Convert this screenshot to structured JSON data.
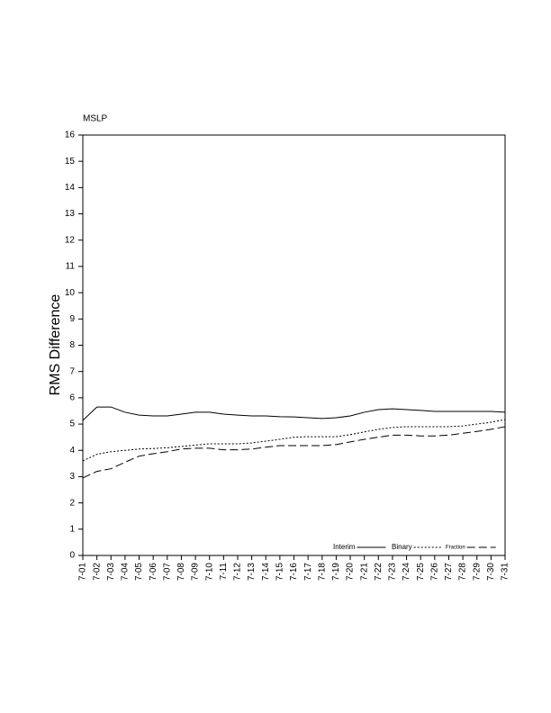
{
  "chart_data": {
    "type": "line",
    "title": "MSLP",
    "y_label": "RMS Difference",
    "categories": [
      "7-01",
      "7-02",
      "7-03",
      "7-04",
      "7-05",
      "7-06",
      "7-07",
      "7-08",
      "7-09",
      "7-10",
      "7-11",
      "7-12",
      "7-13",
      "7-14",
      "7-15",
      "7-16",
      "7-17",
      "7-18",
      "7-19",
      "7-20",
      "7-21",
      "7-22",
      "7-23",
      "7-24",
      "7-25",
      "7-26",
      "7-27",
      "7-28",
      "7-29",
      "7-30",
      "7-31"
    ],
    "series": [
      {
        "name": "Interim",
        "color": "#000000",
        "dash": "solid",
        "values": [
          5.14,
          5.65,
          5.65,
          5.45,
          5.34,
          5.31,
          5.31,
          5.38,
          5.45,
          5.45,
          5.38,
          5.34,
          5.31,
          5.31,
          5.28,
          5.27,
          5.24,
          5.21,
          5.24,
          5.31,
          5.45,
          5.55,
          5.58,
          5.55,
          5.52,
          5.48,
          5.48,
          5.48,
          5.48,
          5.48,
          5.45
        ]
      },
      {
        "name": "Binary",
        "color": "#000000",
        "dash": "dotted",
        "values": [
          3.6,
          3.85,
          3.95,
          4.0,
          4.05,
          4.07,
          4.1,
          4.15,
          4.2,
          4.25,
          4.25,
          4.25,
          4.28,
          4.35,
          4.42,
          4.5,
          4.52,
          4.52,
          4.52,
          4.6,
          4.7,
          4.8,
          4.87,
          4.9,
          4.9,
          4.9,
          4.9,
          4.93,
          5.0,
          5.07,
          5.17
        ]
      },
      {
        "name": "Fraction",
        "color": "#000000",
        "dash": "dashed",
        "values": [
          2.95,
          3.2,
          3.3,
          3.55,
          3.78,
          3.87,
          3.95,
          4.05,
          4.08,
          4.08,
          4.02,
          4.02,
          4.05,
          4.12,
          4.18,
          4.18,
          4.18,
          4.18,
          4.22,
          4.32,
          4.42,
          4.5,
          4.58,
          4.58,
          4.55,
          4.55,
          4.58,
          4.65,
          4.72,
          4.8,
          4.9
        ]
      }
    ],
    "ylim": [
      0,
      16
    ],
    "yticks": [
      0,
      1,
      2,
      3,
      4,
      5,
      6,
      7,
      8,
      9,
      10,
      11,
      12,
      13,
      14,
      15,
      16
    ],
    "grid": false,
    "legend": "bottom-right"
  }
}
